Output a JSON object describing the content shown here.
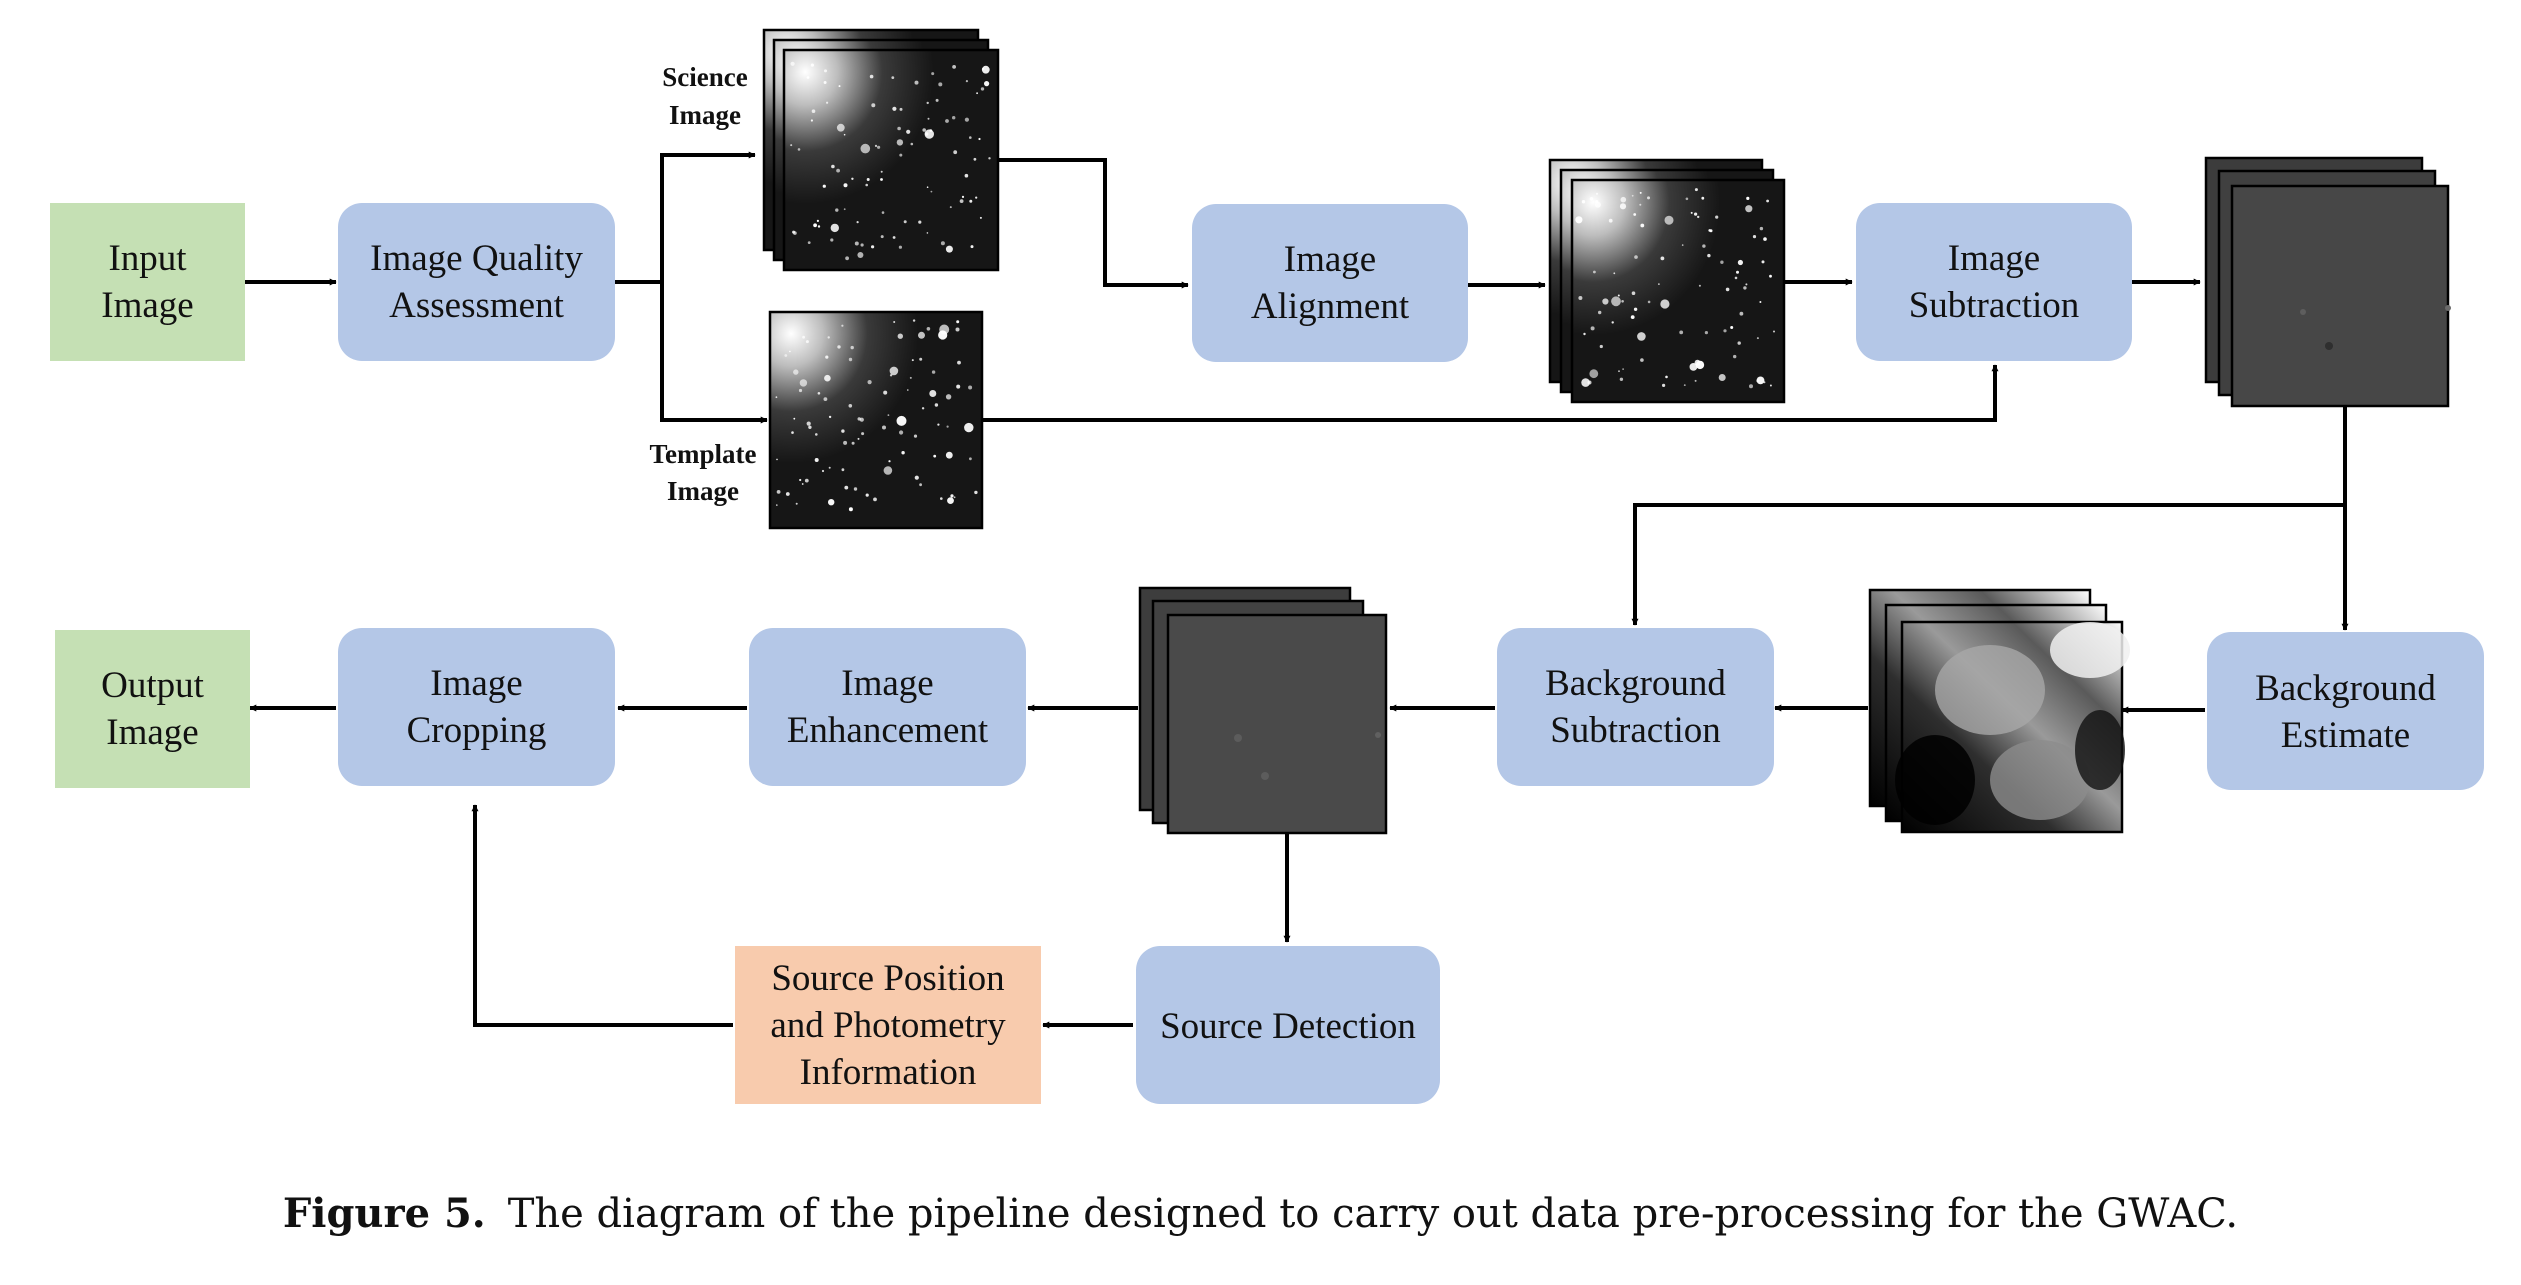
{
  "nodes": {
    "input_image": [
      "Input",
      "Image"
    ],
    "image_quality": [
      "Image Quality",
      "Assessment"
    ],
    "image_alignment": [
      "Image",
      "Alignment"
    ],
    "image_subtraction": [
      "Image",
      "Subtraction"
    ],
    "background_estimate": [
      "Background",
      "Estimate"
    ],
    "background_subtraction": [
      "Background",
      "Subtraction"
    ],
    "image_enhancement": [
      "Image",
      "Enhancement"
    ],
    "image_cropping": [
      "Image",
      "Cropping"
    ],
    "output_image": [
      "Output",
      "Image"
    ],
    "source_detection": [
      "Source Detection"
    ],
    "source_position": [
      "Source Position",
      "and Photometry",
      "Information"
    ]
  },
  "image_labels": {
    "science": [
      "Science",
      "Image"
    ],
    "template": [
      "Template",
      "Image"
    ]
  },
  "caption": {
    "figure": "Figure 5.",
    "text": "The diagram of the pipeline designed to carry out data pre-processing for the GWAC."
  },
  "colors": {
    "green_box": "#c5e0b4",
    "blue_box": "#b4c7e7",
    "orange_box": "#f8cbad",
    "line": "#000000"
  }
}
